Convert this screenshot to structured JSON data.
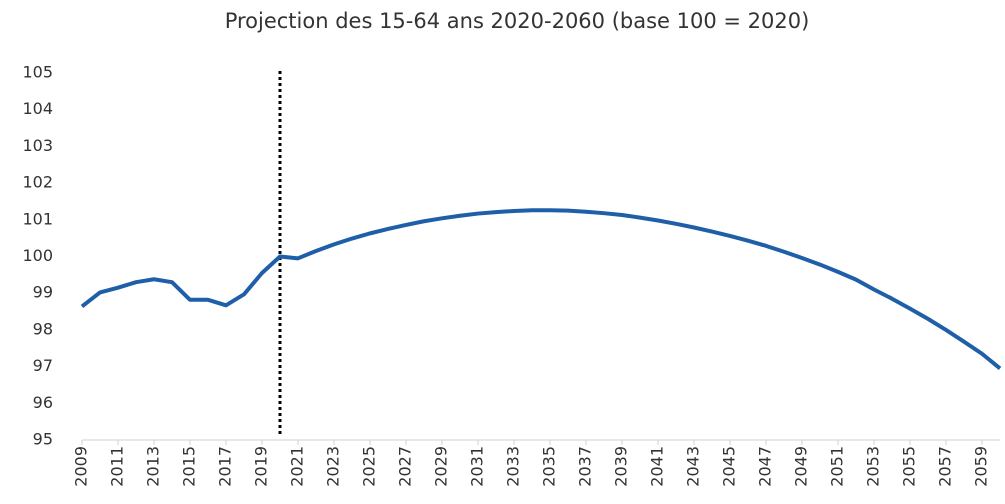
{
  "chart_data": {
    "type": "line",
    "title": "Projection des 15-64 ans 2020-2060 (base 100 = 2020)",
    "x": [
      2009,
      2010,
      2011,
      2012,
      2013,
      2014,
      2015,
      2016,
      2017,
      2018,
      2019,
      2020,
      2021,
      2022,
      2023,
      2024,
      2025,
      2026,
      2027,
      2028,
      2029,
      2030,
      2031,
      2032,
      2033,
      2034,
      2035,
      2036,
      2037,
      2038,
      2039,
      2040,
      2041,
      2042,
      2043,
      2044,
      2045,
      2046,
      2047,
      2048,
      2049,
      2050,
      2051,
      2052,
      2053,
      2054,
      2055,
      2056,
      2057,
      2058,
      2059,
      2060
    ],
    "series": [
      {
        "color": "#1f5fa8",
        "values": [
          98.64,
          99.02,
          99.15,
          99.3,
          99.38,
          99.3,
          98.82,
          98.82,
          98.67,
          98.97,
          99.55,
          100,
          99.95,
          100.15,
          100.33,
          100.49,
          100.63,
          100.75,
          100.86,
          100.96,
          101.04,
          101.11,
          101.17,
          101.21,
          101.24,
          101.26,
          101.26,
          101.25,
          101.22,
          101.18,
          101.13,
          101.06,
          100.98,
          100.89,
          100.79,
          100.68,
          100.56,
          100.43,
          100.29,
          100.13,
          99.96,
          99.78,
          99.58,
          99.37,
          99.1,
          98.85,
          98.58,
          98.3,
          98.0,
          97.68,
          97.35,
          96.95
        ]
      }
    ],
    "xlim": [
      2009,
      2060
    ],
    "xticks": [
      2009,
      2011,
      2013,
      2015,
      2017,
      2019,
      2021,
      2023,
      2025,
      2027,
      2029,
      2031,
      2033,
      2035,
      2037,
      2039,
      2041,
      2043,
      2045,
      2047,
      2049,
      2051,
      2053,
      2055,
      2057,
      2059
    ],
    "ylim": [
      95,
      105
    ],
    "yticks": [
      95,
      96,
      97,
      98,
      99,
      100,
      101,
      102,
      103,
      104,
      105
    ],
    "divider_x": 2020,
    "grid": false
  }
}
